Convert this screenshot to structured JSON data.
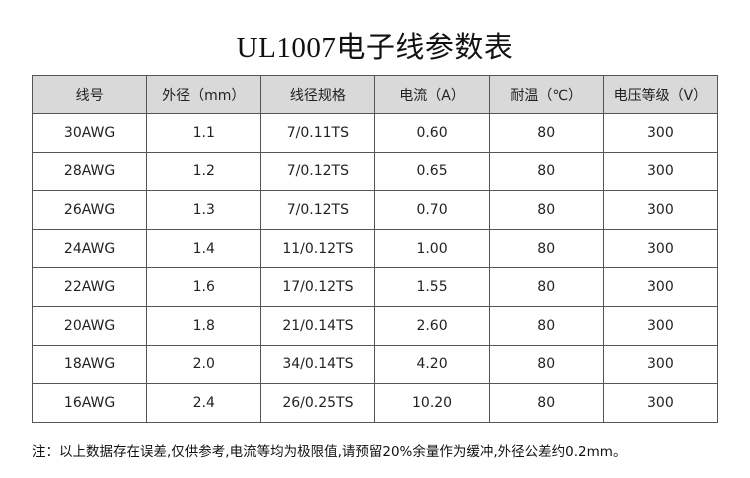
{
  "title": "UL1007电子线参数表",
  "table": {
    "header": [
      "线号",
      "外径（mm）",
      "线径规格",
      "电流（A）",
      "耐温（℃）",
      "电压等级（V）"
    ],
    "rows": [
      [
        "30AWG",
        "1.1",
        "7/0.11TS",
        "0.60",
        "80",
        "300"
      ],
      [
        "28AWG",
        "1.2",
        "7/0.12TS",
        "0.65",
        "80",
        "300"
      ],
      [
        "26AWG",
        "1.3",
        "7/0.12TS",
        "0.70",
        "80",
        "300"
      ],
      [
        "24AWG",
        "1.4",
        "11/0.12TS",
        "1.00",
        "80",
        "300"
      ],
      [
        "22AWG",
        "1.6",
        "17/0.12TS",
        "1.55",
        "80",
        "300"
      ],
      [
        "20AWG",
        "1.8",
        "21/0.14TS",
        "2.60",
        "80",
        "300"
      ],
      [
        "18AWG",
        "2.0",
        "34/0.14TS",
        "4.20",
        "80",
        "300"
      ],
      [
        "16AWG",
        "2.4",
        "26/0.25TS",
        "10.20",
        "80",
        "300"
      ]
    ]
  },
  "note": "注：以上数据存在误差,仅供参考,电流等均为极限值,请预留20%余量作为缓冲,外径公差约0.2mm。"
}
